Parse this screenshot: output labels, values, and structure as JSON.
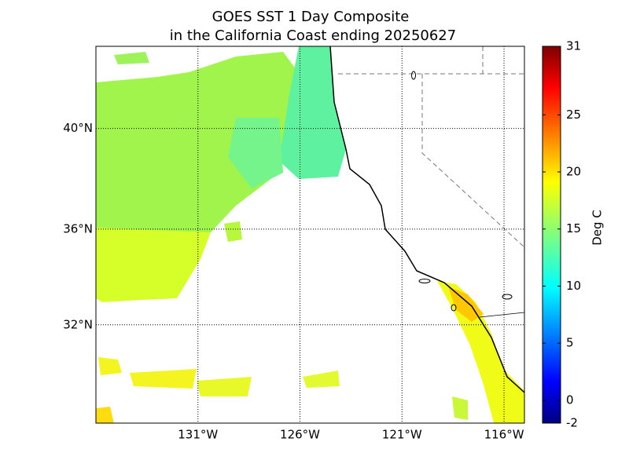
{
  "chart_data": {
    "type": "map",
    "title_lines": [
      "GOES SST 1 Day Composite",
      "in the California Coast ending 20250627"
    ],
    "xlim": [
      -136,
      -115
    ],
    "xticks": [
      {
        "value": -131,
        "label": "131°W"
      },
      {
        "value": -126,
        "label": "126°W"
      },
      {
        "value": -121,
        "label": "121°W"
      },
      {
        "value": -116,
        "label": "116°W"
      }
    ],
    "ylim": [
      27.7,
      43.1
    ],
    "yticks": [
      {
        "value": 32,
        "label": "32°N"
      },
      {
        "value": 36,
        "label": "36°N"
      },
      {
        "value": 40,
        "label": "40°N"
      }
    ],
    "grid": true,
    "colorbar": {
      "label": "Deg C",
      "lim": [
        -2,
        31
      ],
      "ticks": [
        -2,
        0,
        5,
        10,
        15,
        20,
        25,
        31
      ]
    }
  }
}
